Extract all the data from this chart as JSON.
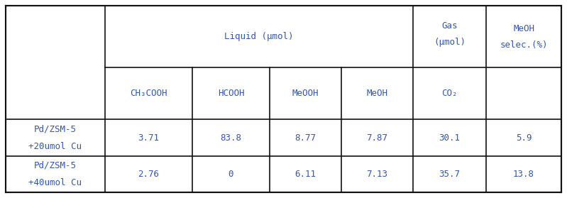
{
  "col_headers_liquid": [
    "CH₃COOH",
    "HCOOH",
    "MeOOH",
    "MeOH"
  ],
  "col_header_gas_line1": "Gas",
  "col_header_gas_line2": "(μmol)",
  "col_header_meoh_line1": "MeOH",
  "col_header_meoh_line2": "selec.(%)",
  "col_header_liquid_group": "Liquid (μmol)",
  "rows": [
    {
      "label_line1": "Pd/ZSM-5",
      "label_line2": "+20umol Cu",
      "values": [
        "3.71",
        "83.8",
        "8.77",
        "7.87",
        "30.1",
        "5.9"
      ]
    },
    {
      "label_line1": "Pd/ZSM-5",
      "label_line2": "+40umol Cu",
      "values": [
        "2.76",
        "0",
        "6.11",
        "7.13",
        "35.7",
        "13.8"
      ]
    }
  ],
  "text_color": "#3355AA",
  "line_color": "#111111",
  "bg_color": "#ffffff",
  "font_family": "monospace",
  "font_size": 9.0
}
